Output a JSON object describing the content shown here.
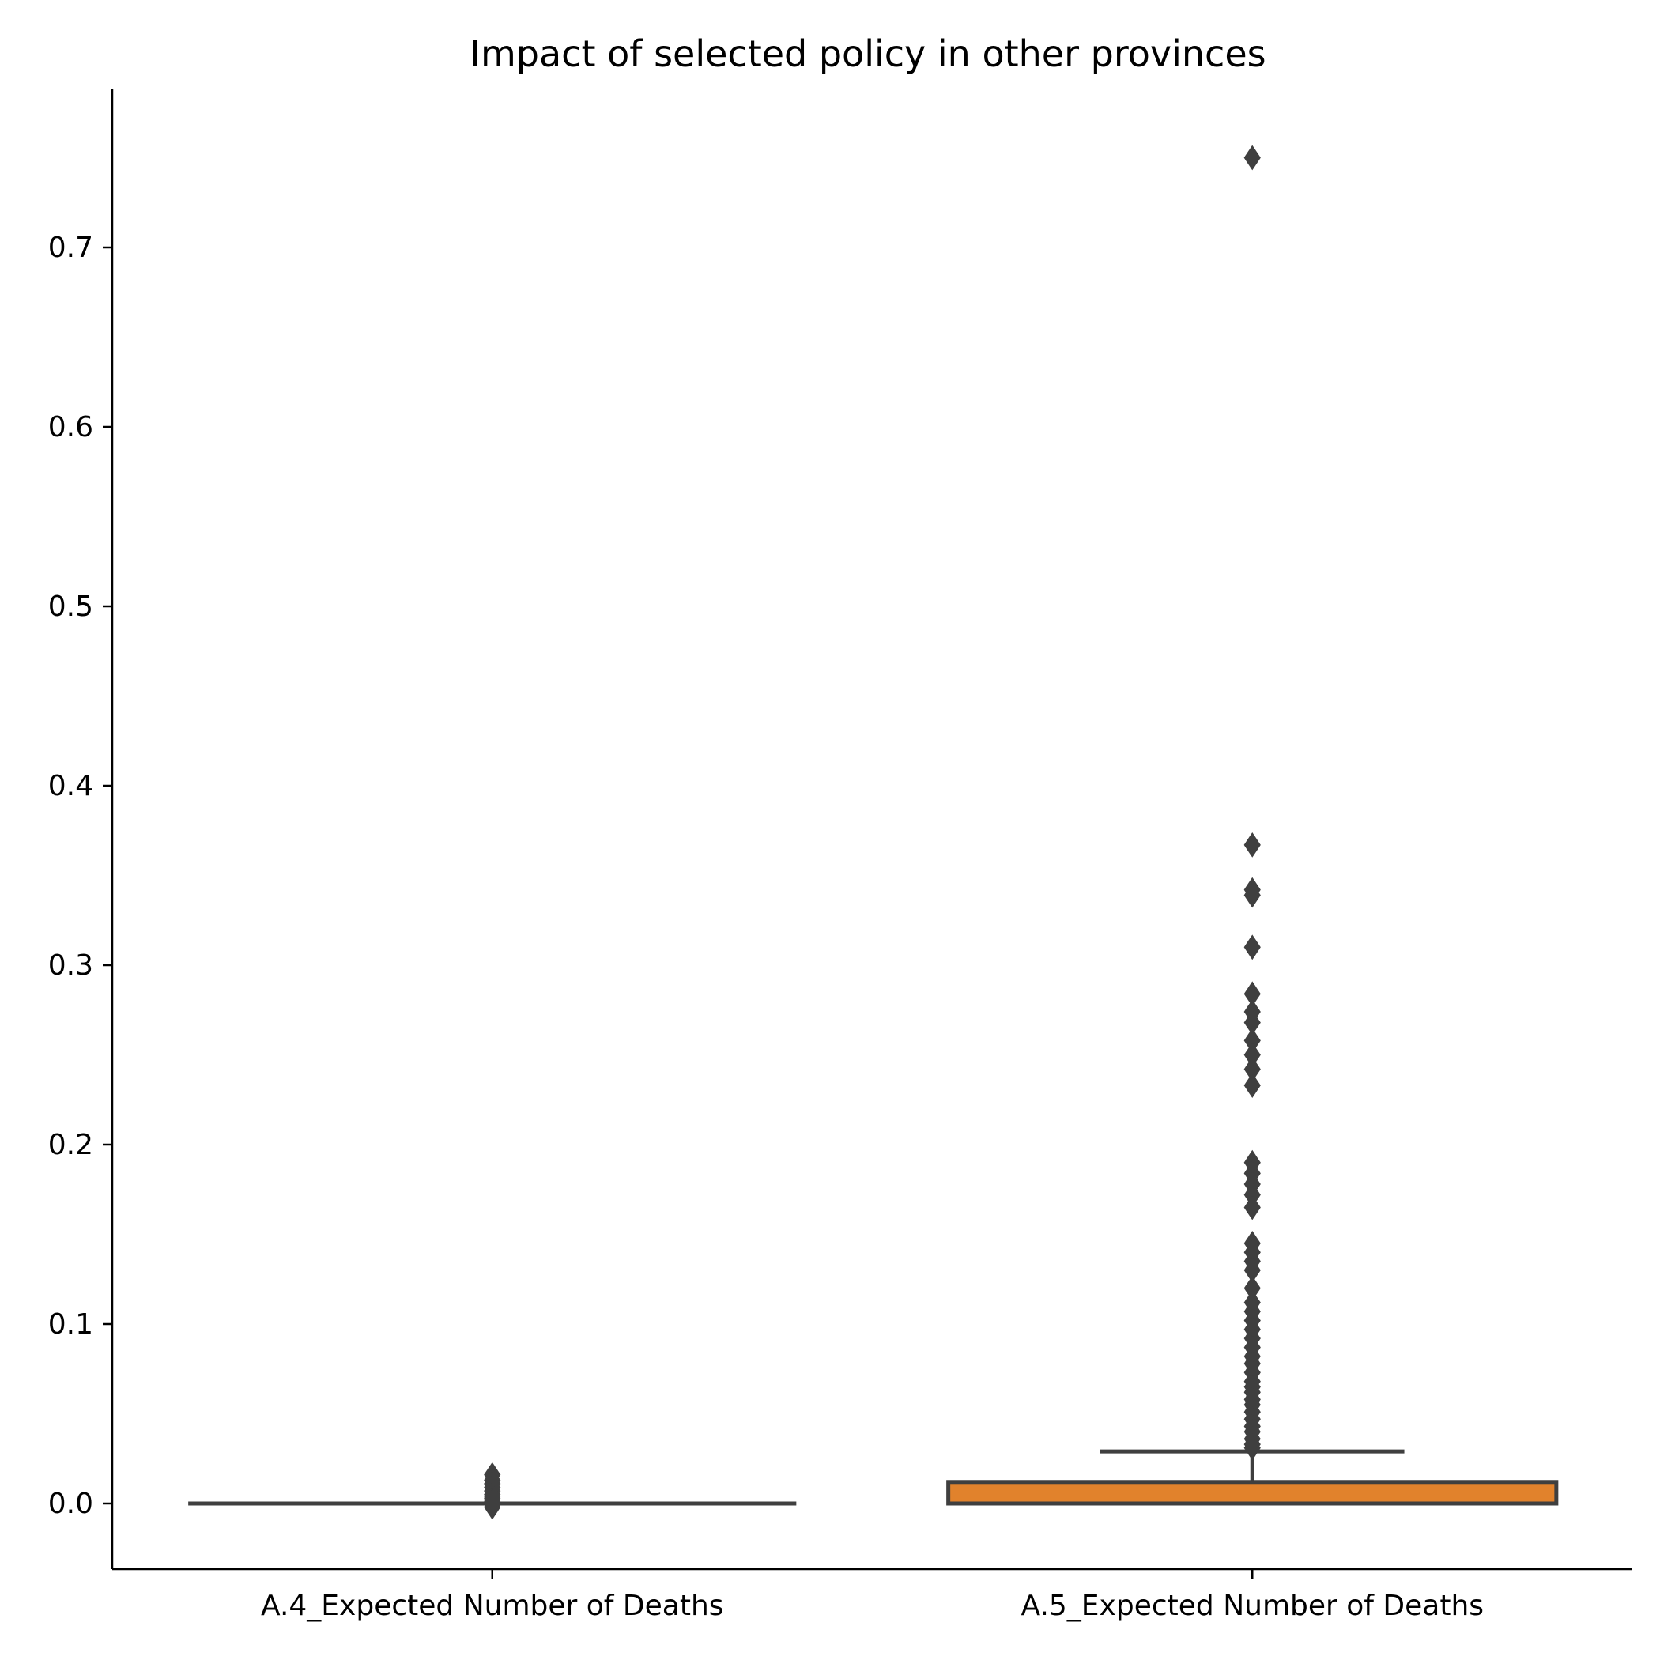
{
  "chart_data": {
    "type": "box",
    "title": "Impact of selected policy in other provinces",
    "xlabel": "",
    "ylabel": "",
    "ylim": [
      -0.037,
      0.787
    ],
    "yticks": [
      0.0,
      0.1,
      0.2,
      0.3,
      0.4,
      0.5,
      0.6,
      0.7
    ],
    "ytick_labels": [
      "0.0",
      "0.1",
      "0.2",
      "0.3",
      "0.4",
      "0.5",
      "0.6",
      "0.7"
    ],
    "grid": false,
    "categories": [
      "A.4_Expected Number of Deaths",
      "A.5_Expected Number of Deaths"
    ],
    "boxes": [
      {
        "category": "A.4_Expected Number of Deaths",
        "color": "#3a7ab8",
        "whisker_low": 0.0,
        "q1": 0.0,
        "median": 0.0,
        "q3": 0.0,
        "whisker_high": 0.0,
        "outliers": [
          0.016,
          0.013,
          0.011,
          0.009,
          0.007,
          0.005,
          0.004,
          0.003,
          0.002,
          0.001,
          -0.002
        ]
      },
      {
        "category": "A.5_Expected Number of Deaths",
        "color": "#e1822c",
        "whisker_low": 0.0,
        "q1": 0.0,
        "median": 0.0,
        "q3": 0.012,
        "whisker_high": 0.029,
        "outliers": [
          0.75,
          0.367,
          0.342,
          0.339,
          0.31,
          0.284,
          0.274,
          0.268,
          0.258,
          0.25,
          0.242,
          0.233,
          0.19,
          0.184,
          0.178,
          0.172,
          0.165,
          0.145,
          0.14,
          0.135,
          0.13,
          0.12,
          0.112,
          0.107,
          0.102,
          0.097,
          0.092,
          0.087,
          0.082,
          0.078,
          0.073,
          0.068,
          0.065,
          0.062,
          0.058,
          0.055,
          0.051,
          0.047,
          0.043,
          0.04,
          0.036,
          0.033,
          0.031
        ]
      }
    ],
    "colors": {
      "line": "#3f3f3f",
      "axis": "#000000"
    }
  }
}
